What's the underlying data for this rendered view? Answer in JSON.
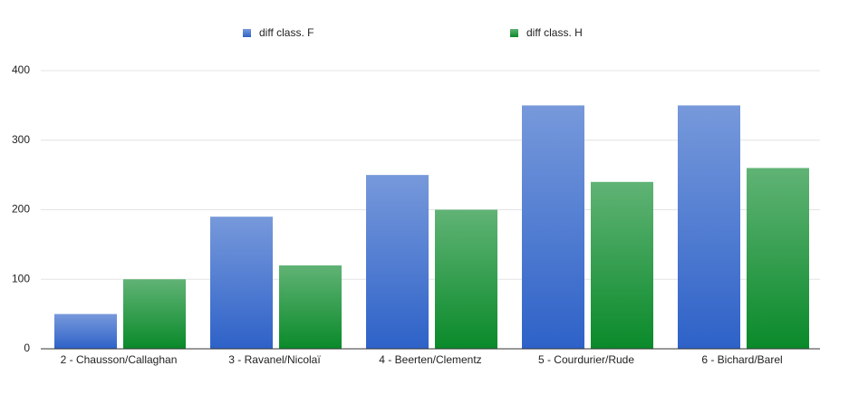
{
  "chart_data": {
    "type": "bar",
    "categories": [
      "2 - Chausson/Callaghan",
      "3 - Ravanel/Nicolaï",
      "4 - Beerten/Clementz",
      "5 - Courdurier/Rude",
      "6 - Bichard/Barel"
    ],
    "series": [
      {
        "name": "diff class. F",
        "color": "#2e62c8",
        "values": [
          50,
          190,
          250,
          350,
          350
        ]
      },
      {
        "name": "diff class. H",
        "color": "#0a8a2a",
        "values": [
          100,
          120,
          200,
          240,
          260
        ]
      }
    ],
    "ylim": [
      0,
      400
    ],
    "yticks": [
      0,
      100,
      200,
      300,
      400
    ],
    "grid": true
  }
}
